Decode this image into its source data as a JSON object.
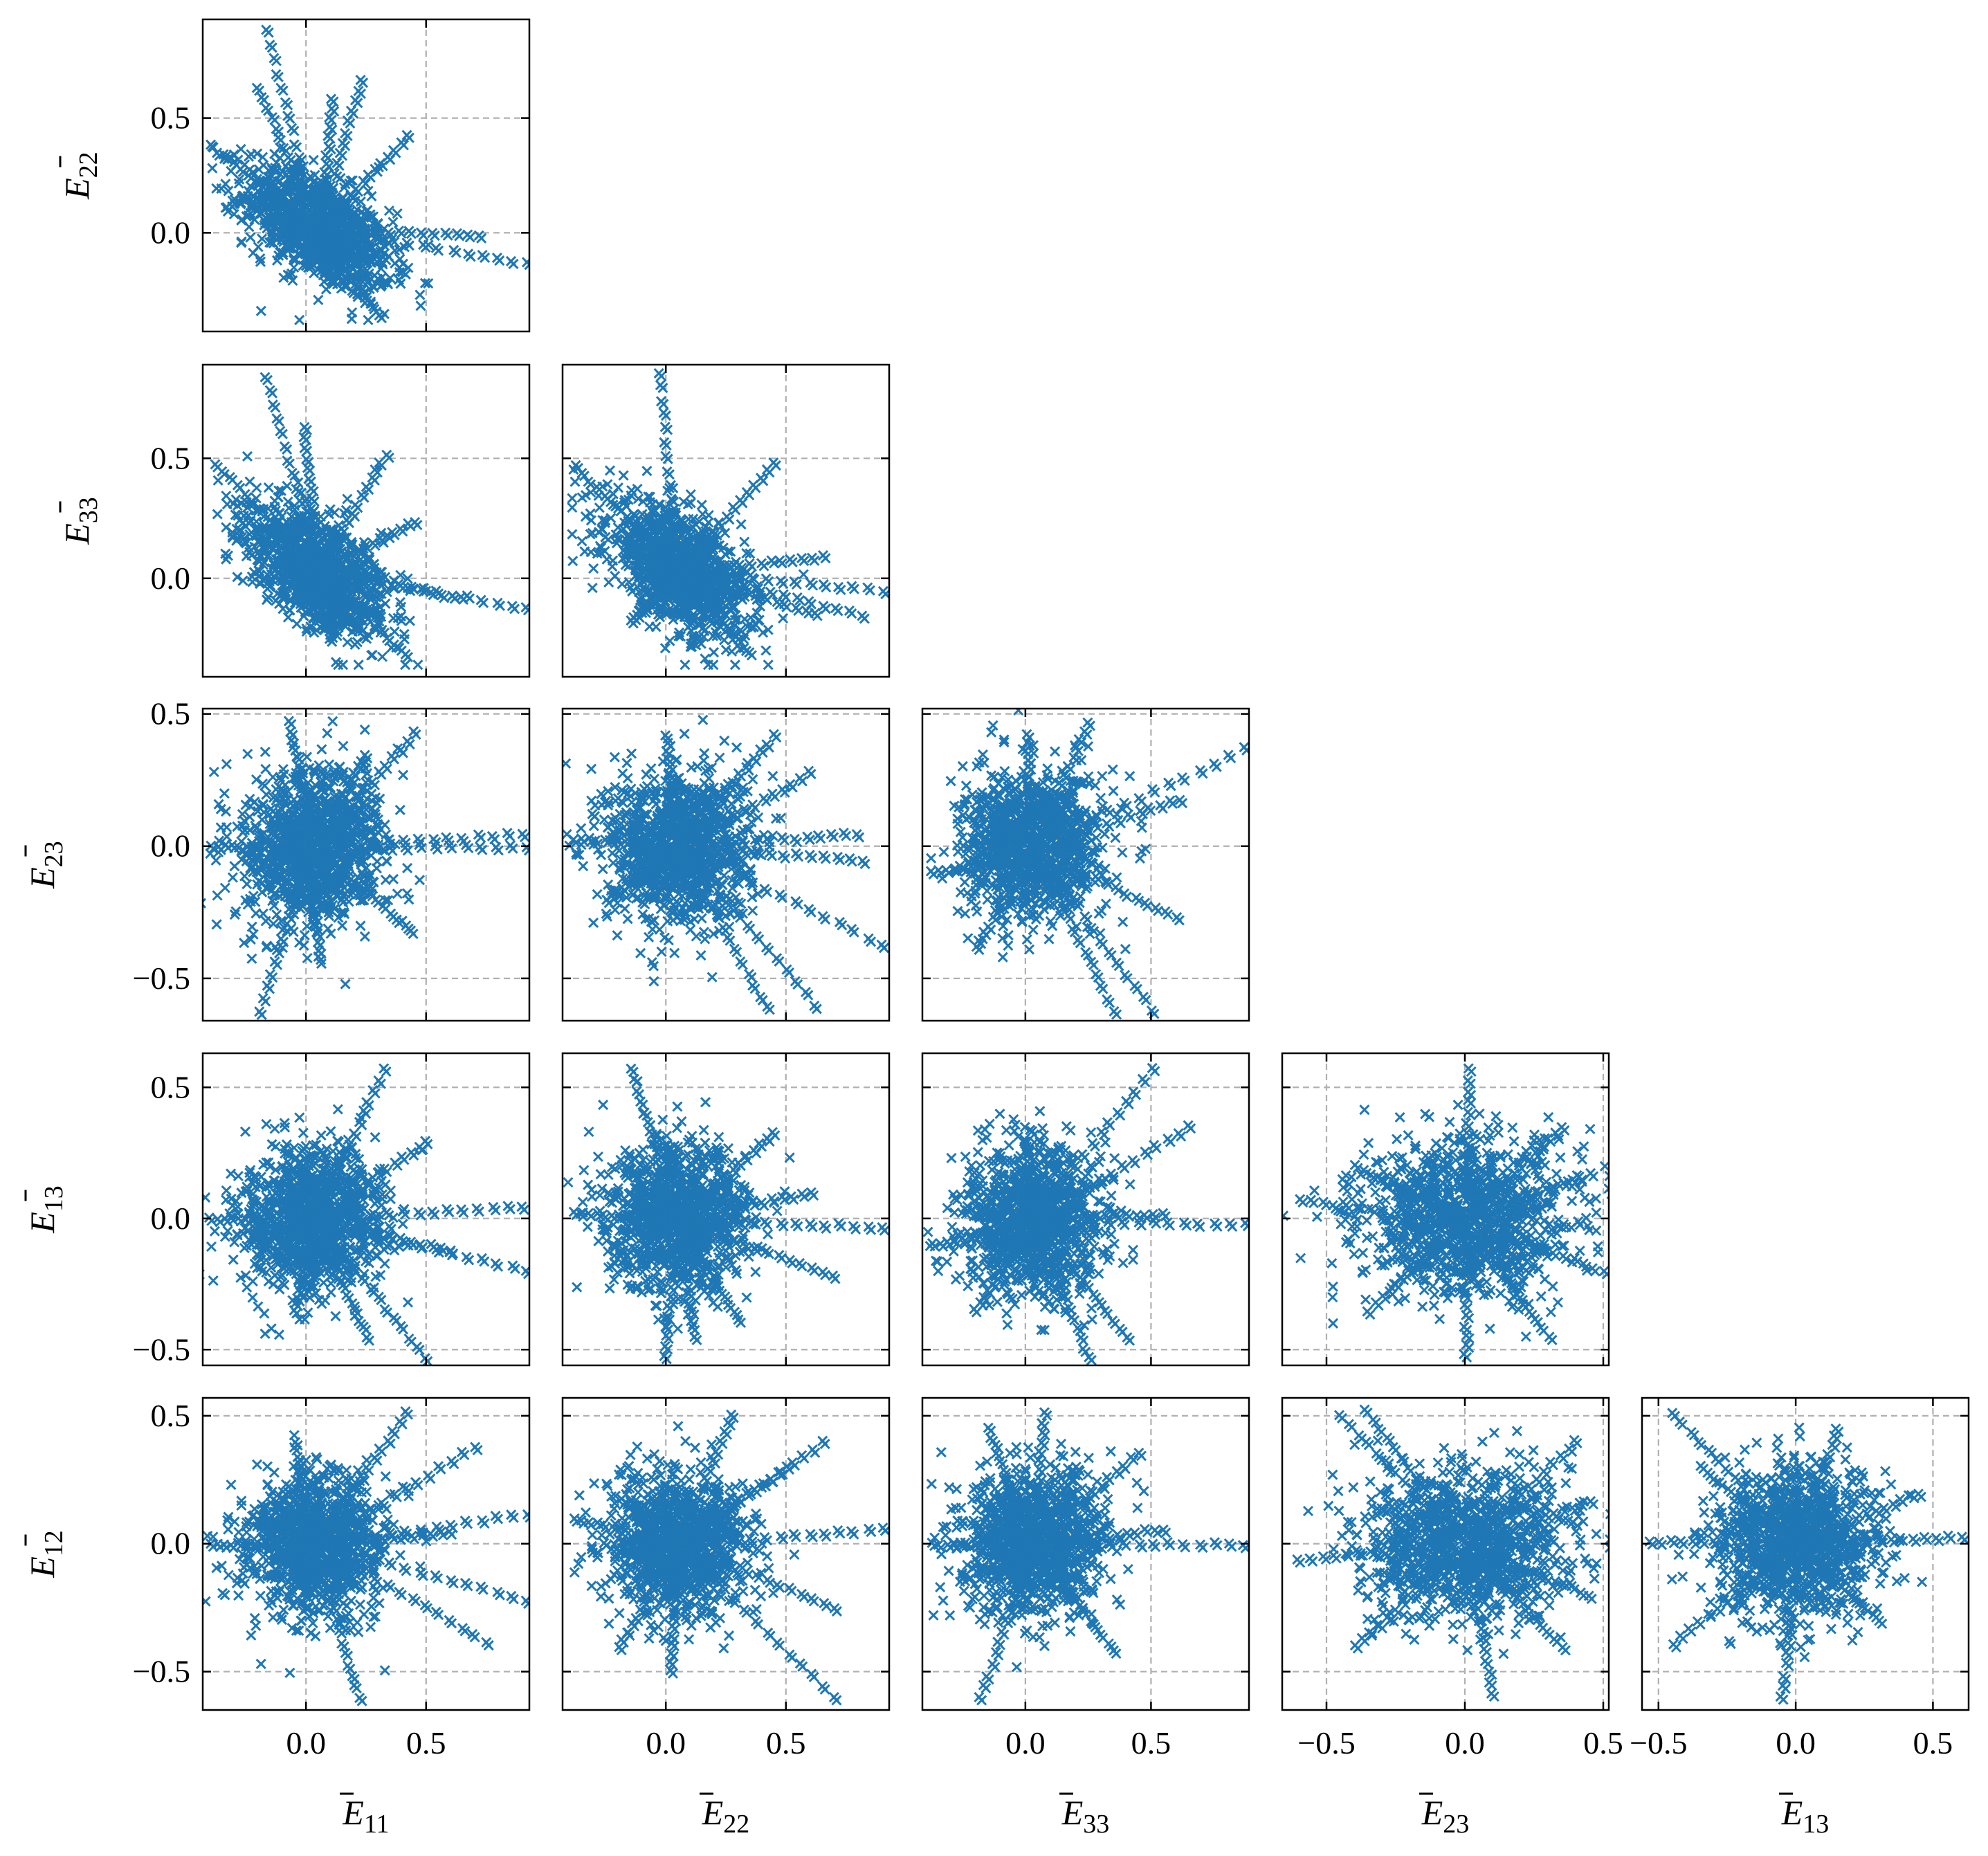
{
  "chart_data": {
    "type": "scatter",
    "layout": "corner-plot",
    "marker": "x",
    "color": "#1f77b4",
    "grid": true,
    "grid_style": "dashed",
    "variables": [
      {
        "key": "E11",
        "base": "E",
        "sub": "11",
        "lim": [
          -0.43,
          0.93
        ],
        "ticks": [
          0.0,
          0.5
        ],
        "tick_labels": [
          "0.0",
          "0.5"
        ]
      },
      {
        "key": "E22",
        "base": "E",
        "sub": "22",
        "lim": [
          -0.43,
          0.93
        ],
        "ticks": [
          0.0,
          0.5
        ],
        "tick_labels": [
          "0.0",
          "0.5"
        ]
      },
      {
        "key": "E33",
        "base": "E",
        "sub": "33",
        "lim": [
          -0.41,
          0.89
        ],
        "ticks": [
          0.0,
          0.5
        ],
        "tick_labels": [
          "0.0",
          "0.5"
        ]
      },
      {
        "key": "E23",
        "base": "E",
        "sub": "23",
        "lim": [
          -0.66,
          0.52
        ],
        "ticks": [
          -0.5,
          0.0,
          0.5
        ],
        "tick_labels": [
          "−0.5",
          "0.0",
          "0.5"
        ]
      },
      {
        "key": "E13",
        "base": "E",
        "sub": "13",
        "lim": [
          -0.56,
          0.63
        ],
        "ticks": [
          -0.5,
          0.0,
          0.5
        ],
        "tick_labels": [
          "−0.5",
          "0.0",
          "0.5"
        ]
      },
      {
        "key": "E12",
        "base": "E",
        "sub": "12",
        "lim": [
          -0.65,
          0.57
        ],
        "ticks": [
          -0.5,
          0.0,
          0.5
        ],
        "tick_labels": [
          "−0.5",
          "0.0",
          "0.5"
        ]
      }
    ],
    "panels": [
      {
        "x": "E11",
        "y": "E22",
        "center": [
          0.05,
          0.02
        ],
        "spread": [
          0.18,
          0.16
        ],
        "corr": -0.55,
        "rays": [
          [
            0.92,
            -0.13
          ],
          [
            0.72,
            -0.01
          ],
          [
            -0.17,
            0.88
          ],
          [
            0.23,
            0.67
          ],
          [
            0.42,
            0.42
          ],
          [
            -0.4,
            0.38
          ],
          [
            0.3,
            -0.36
          ],
          [
            -0.2,
            0.63
          ],
          [
            0.11,
            0.58
          ]
        ]
      },
      {
        "x": "E11",
        "y": "E33",
        "center": [
          0.05,
          0.03
        ],
        "spread": [
          0.17,
          0.16
        ],
        "corr": -0.55,
        "rays": [
          [
            0.92,
            -0.12
          ],
          [
            0.65,
            -0.08
          ],
          [
            -0.17,
            0.84
          ],
          [
            -0.01,
            0.63
          ],
          [
            0.33,
            0.52
          ],
          [
            -0.38,
            0.48
          ],
          [
            0.45,
            0.24
          ],
          [
            0.42,
            -0.32
          ],
          [
            0.1,
            -0.25
          ]
        ]
      },
      {
        "x": "E22",
        "y": "E33",
        "center": [
          0.05,
          0.04
        ],
        "spread": [
          0.17,
          0.16
        ],
        "corr": -0.55,
        "rays": [
          [
            0.9,
            -0.05
          ],
          [
            0.82,
            -0.15
          ],
          [
            -0.03,
            0.86
          ],
          [
            0.45,
            0.48
          ],
          [
            -0.38,
            0.47
          ],
          [
            0.65,
            0.09
          ],
          [
            0.62,
            -0.15
          ],
          [
            0.35,
            -0.31
          ],
          [
            -0.15,
            -0.18
          ]
        ]
      },
      {
        "x": "E11",
        "y": "E23",
        "center": [
          0.03,
          0.0
        ],
        "spread": [
          0.17,
          0.17
        ],
        "corr": 0.0,
        "rays": [
          [
            0.92,
            0.0
          ],
          [
            0.9,
            0.05
          ],
          [
            0.45,
            0.43
          ],
          [
            -0.2,
            -0.62
          ],
          [
            -0.07,
            0.47
          ],
          [
            0.05,
            -0.42
          ],
          [
            0.44,
            -0.32
          ],
          [
            -0.4,
            0.0
          ],
          [
            0.25,
            0.35
          ]
        ]
      },
      {
        "x": "E22",
        "y": "E23",
        "center": [
          0.05,
          0.0
        ],
        "spread": [
          0.17,
          0.17
        ],
        "corr": 0.0,
        "rays": [
          [
            0.9,
            -0.37
          ],
          [
            0.62,
            -0.6
          ],
          [
            0.42,
            -0.61
          ],
          [
            0.6,
            0.28
          ],
          [
            0.45,
            0.42
          ],
          [
            0.82,
            -0.05
          ],
          [
            0.8,
            0.05
          ],
          [
            -0.38,
            0.03
          ],
          [
            0.0,
            0.42
          ],
          [
            -0.25,
            -0.2
          ]
        ]
      },
      {
        "x": "E33",
        "y": "E23",
        "center": [
          0.03,
          0.0
        ],
        "spread": [
          0.16,
          0.16
        ],
        "corr": 0.0,
        "rays": [
          [
            0.87,
            0.37
          ],
          [
            0.5,
            -0.62
          ],
          [
            0.35,
            -0.62
          ],
          [
            0.25,
            0.47
          ],
          [
            0.62,
            0.18
          ],
          [
            0.6,
            -0.27
          ],
          [
            -0.37,
            -0.1
          ],
          [
            0.0,
            0.42
          ],
          [
            -0.2,
            -0.38
          ]
        ]
      },
      {
        "x": "E11",
        "y": "E13",
        "center": [
          0.03,
          0.0
        ],
        "spread": [
          0.17,
          0.16
        ],
        "corr": 0.0,
        "rays": [
          [
            0.92,
            -0.2
          ],
          [
            0.9,
            0.05
          ],
          [
            0.6,
            -0.12
          ],
          [
            0.5,
            -0.53
          ],
          [
            0.32,
            0.57
          ],
          [
            0.25,
            -0.45
          ],
          [
            -0.4,
            0.0
          ],
          [
            0.5,
            0.3
          ],
          [
            -0.05,
            -0.35
          ]
        ]
      },
      {
        "x": "E22",
        "y": "E13",
        "center": [
          0.05,
          0.0
        ],
        "spread": [
          0.17,
          0.16
        ],
        "corr": 0.0,
        "rays": [
          [
            0.9,
            -0.03
          ],
          [
            0.7,
            -0.22
          ],
          [
            -0.15,
            0.57
          ],
          [
            -0.01,
            -0.52
          ],
          [
            0.12,
            -0.45
          ],
          [
            0.45,
            0.33
          ],
          [
            -0.38,
            0.02
          ],
          [
            0.6,
            0.1
          ],
          [
            0.3,
            -0.38
          ]
        ]
      },
      {
        "x": "E33",
        "y": "E13",
        "center": [
          0.03,
          0.0
        ],
        "spread": [
          0.16,
          0.16
        ],
        "corr": 0.0,
        "rays": [
          [
            0.87,
            -0.02
          ],
          [
            0.5,
            0.57
          ],
          [
            0.65,
            0.35
          ],
          [
            0.25,
            -0.53
          ],
          [
            0.4,
            -0.45
          ],
          [
            -0.37,
            -0.1
          ],
          [
            0.55,
            0.02
          ],
          [
            0.0,
            0.3
          ],
          [
            -0.2,
            -0.35
          ]
        ]
      },
      {
        "x": "E23",
        "y": "E13",
        "center": [
          0.0,
          0.0
        ],
        "spread": [
          0.22,
          0.17
        ],
        "corr": 0.0,
        "rays": [
          [
            -0.6,
            0.07
          ],
          [
            0.01,
            0.57
          ],
          [
            0.0,
            -0.52
          ],
          [
            0.5,
            -0.2
          ],
          [
            0.45,
            0.17
          ],
          [
            0.3,
            -0.45
          ],
          [
            -0.35,
            -0.35
          ],
          [
            0.35,
            0.35
          ],
          [
            -0.4,
            0.2
          ]
        ]
      },
      {
        "x": "E11",
        "y": "E12",
        "center": [
          0.03,
          0.0
        ],
        "spread": [
          0.17,
          0.16
        ],
        "corr": 0.0,
        "rays": [
          [
            0.92,
            0.12
          ],
          [
            0.92,
            -0.22
          ],
          [
            0.75,
            -0.38
          ],
          [
            0.7,
            0.38
          ],
          [
            0.42,
            0.52
          ],
          [
            0.22,
            -0.6
          ],
          [
            -0.4,
            0.0
          ],
          [
            0.6,
            0.05
          ],
          [
            -0.05,
            0.4
          ]
        ]
      },
      {
        "x": "E22",
        "y": "E12",
        "center": [
          0.05,
          0.0
        ],
        "spread": [
          0.17,
          0.16
        ],
        "corr": 0.0,
        "rays": [
          [
            0.9,
            0.06
          ],
          [
            0.7,
            -0.6
          ],
          [
            0.7,
            -0.25
          ],
          [
            0.65,
            0.4
          ],
          [
            0.27,
            0.51
          ],
          [
            -0.38,
            0.1
          ],
          [
            0.02,
            -0.5
          ],
          [
            0.5,
            0.3
          ],
          [
            -0.2,
            -0.4
          ]
        ]
      },
      {
        "x": "E33",
        "y": "E12",
        "center": [
          0.03,
          0.0
        ],
        "spread": [
          0.16,
          0.16
        ],
        "corr": 0.0,
        "rays": [
          [
            0.87,
            0.0
          ],
          [
            0.07,
            0.51
          ],
          [
            -0.18,
            -0.6
          ],
          [
            0.35,
            -0.42
          ],
          [
            0.45,
            0.36
          ],
          [
            -0.37,
            0.0
          ],
          [
            0.55,
            0.06
          ],
          [
            -0.15,
            0.45
          ],
          [
            0.2,
            0.3
          ]
        ]
      },
      {
        "x": "E23",
        "y": "E12",
        "center": [
          0.0,
          0.0
        ],
        "spread": [
          0.22,
          0.17
        ],
        "corr": 0.0,
        "rays": [
          [
            -0.6,
            -0.06
          ],
          [
            0.45,
            -0.2
          ],
          [
            -0.36,
            0.52
          ],
          [
            0.1,
            -0.58
          ],
          [
            0.45,
            0.17
          ],
          [
            -0.45,
            0.5
          ],
          [
            0.35,
            -0.4
          ],
          [
            -0.4,
            -0.4
          ],
          [
            0.4,
            0.4
          ]
        ]
      },
      {
        "x": "E13",
        "y": "E12",
        "center": [
          0.0,
          0.0
        ],
        "spread": [
          0.17,
          0.17
        ],
        "corr": 0.0,
        "rays": [
          [
            -0.53,
            0.01
          ],
          [
            0.6,
            0.03
          ],
          [
            -0.45,
            0.51
          ],
          [
            -0.45,
            -0.39
          ],
          [
            -0.05,
            -0.6
          ],
          [
            0.45,
            0.2
          ],
          [
            -0.35,
            0.3
          ],
          [
            0.3,
            -0.3
          ],
          [
            0.15,
            0.45
          ]
        ]
      }
    ]
  }
}
